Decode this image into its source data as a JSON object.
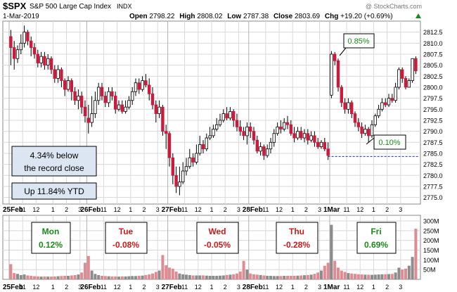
{
  "header": {
    "symbol": "$SPX",
    "name": "S&P 500 Large Cap Index",
    "exchange": "INDX",
    "date": "1-Mar-2019",
    "open_label": "Open",
    "open": "2798.22",
    "high_label": "High",
    "high": "2808.02",
    "low_label": "Low",
    "low": "2787.38",
    "close_label": "Close",
    "close": "2803.69",
    "chg_label": "Chg",
    "chg": "+19.20 (+0.69%)",
    "watermark": "@ StockCharts.com"
  },
  "colors": {
    "up": "#ffffff",
    "down": "#cc1a3c",
    "wick": "#000000",
    "vol_down": "#e08a92",
    "vol_up": "#8c8c8c",
    "grid": "#d8d8d8",
    "green_text": "#1a8a1a",
    "red_text": "#cc1a1a",
    "box_blue": "#dce6f2",
    "box_green": "#e6f2e6",
    "dashed": "#2030c0"
  },
  "annotations": {
    "below_record_line1": "4.34% below",
    "below_record_line2": "the record close",
    "ytd": "Up 11.84% YTD",
    "high_pct": "0.85%",
    "low_pct": "0.10%"
  },
  "days": [
    {
      "name": "Mon",
      "pct": "0.12%",
      "tone": "green"
    },
    {
      "name": "Tue",
      "pct": "-0.08%",
      "tone": "red"
    },
    {
      "name": "Wed",
      "pct": "-0.05%",
      "tone": "red"
    },
    {
      "name": "Thu",
      "pct": "-0.28%",
      "tone": "red"
    },
    {
      "name": "Fri",
      "pct": "0.69%",
      "tone": "green"
    }
  ],
  "chart_data": {
    "type": "candlestick",
    "title": "$SPX S&P 500 Large Cap Index INDX",
    "price_ylim": [
      2773.5,
      2815
    ],
    "price_ticks": [
      "2812.5",
      "2810.0",
      "2807.5",
      "2805.0",
      "2802.5",
      "2800.0",
      "2797.5",
      "2795.0",
      "2792.5",
      "2790.0",
      "2787.5",
      "2785.0",
      "2782.5",
      "2780.0",
      "2777.5",
      "2775.0"
    ],
    "volume_ticks": [
      "300M",
      "250M",
      "200M",
      "150M",
      "100M",
      "50M"
    ],
    "volume_ylim": [
      0,
      300
    ],
    "reference_line": 2784.3,
    "x_ticks": [
      {
        "bar": 0,
        "label": "25Feb",
        "major": true
      },
      {
        "bar": 4,
        "label": "11"
      },
      {
        "bar": 8,
        "label": "12"
      },
      {
        "bar": 13,
        "label": "1"
      },
      {
        "bar": 17,
        "label": "2"
      },
      {
        "bar": 21,
        "label": "3"
      },
      {
        "bar": 23,
        "label": "26Feb",
        "major": true
      },
      {
        "bar": 28,
        "label": "11"
      },
      {
        "bar": 32,
        "label": "12"
      },
      {
        "bar": 36,
        "label": "1"
      },
      {
        "bar": 40,
        "label": "2"
      },
      {
        "bar": 44,
        "label": "3"
      },
      {
        "bar": 47,
        "label": "27Feb",
        "major": true
      },
      {
        "bar": 52,
        "label": "11"
      },
      {
        "bar": 56,
        "label": "12"
      },
      {
        "bar": 60,
        "label": "1"
      },
      {
        "bar": 64,
        "label": "2"
      },
      {
        "bar": 68,
        "label": "3"
      },
      {
        "bar": 71,
        "label": "28Feb",
        "major": true
      },
      {
        "bar": 76,
        "label": "11"
      },
      {
        "bar": 80,
        "label": "12"
      },
      {
        "bar": 84,
        "label": "1"
      },
      {
        "bar": 88,
        "label": "2"
      },
      {
        "bar": 92,
        "label": "3"
      },
      {
        "bar": 95,
        "label": "1Mar",
        "major": true
      },
      {
        "bar": 100,
        "label": "11"
      },
      {
        "bar": 104,
        "label": "12"
      },
      {
        "bar": 108,
        "label": "1"
      },
      {
        "bar": 112,
        "label": "2"
      },
      {
        "bar": 116,
        "label": "3"
      }
    ],
    "candles": [
      [
        2811.5,
        2809,
        2813,
        2805,
        78
      ],
      [
        2809,
        2806.5,
        2810.5,
        2804,
        32
      ],
      [
        2806.5,
        2808.5,
        2809.5,
        2805.5,
        28
      ],
      [
        2808.5,
        2810,
        2812,
        2807.5,
        22
      ],
      [
        2810,
        2812.5,
        2814,
        2809,
        25
      ],
      [
        2812.5,
        2810.5,
        2813,
        2809.5,
        20
      ],
      [
        2810.5,
        2809,
        2811.5,
        2807,
        18
      ],
      [
        2809,
        2807.5,
        2810,
        2806.5,
        16
      ],
      [
        2807.5,
        2805.5,
        2808.5,
        2804.5,
        15
      ],
      [
        2805.5,
        2807,
        2808,
        2804.5,
        14
      ],
      [
        2807,
        2805,
        2808,
        2804,
        15
      ],
      [
        2805,
        2806.5,
        2807.5,
        2804,
        14
      ],
      [
        2806.5,
        2804,
        2807,
        2803,
        14
      ],
      [
        2804,
        2802,
        2805,
        2801,
        15
      ],
      [
        2802,
        2804,
        2805,
        2801,
        16
      ],
      [
        2804,
        2801.5,
        2804.5,
        2800,
        17
      ],
      [
        2801.5,
        2799.5,
        2802,
        2798,
        18
      ],
      [
        2799.5,
        2801.5,
        2802.5,
        2799,
        18
      ],
      [
        2801.5,
        2799,
        2802,
        2797,
        20
      ],
      [
        2799,
        2797,
        2800,
        2796,
        22
      ],
      [
        2797,
        2798,
        2799.5,
        2795,
        25
      ],
      [
        2798,
        2795.5,
        2799,
        2794,
        35
      ],
      [
        2795.5,
        2793.5,
        2797,
        2792,
        85
      ],
      [
        2793,
        2792,
        2796,
        2789.5,
        120
      ],
      [
        2792,
        2794,
        2798,
        2791,
        45
      ],
      [
        2794,
        2797,
        2799,
        2793,
        28
      ],
      [
        2797,
        2800,
        2801,
        2796,
        22
      ],
      [
        2800,
        2798,
        2801,
        2797,
        18
      ],
      [
        2798,
        2796.5,
        2799,
        2795.5,
        17
      ],
      [
        2796.5,
        2799,
        2800,
        2795.5,
        16
      ],
      [
        2799,
        2798,
        2800,
        2797,
        15
      ],
      [
        2798,
        2795,
        2799,
        2794,
        15
      ],
      [
        2795,
        2796,
        2797,
        2794.5,
        14
      ],
      [
        2796,
        2794.5,
        2797,
        2794,
        15
      ],
      [
        2794.5,
        2795.5,
        2797,
        2794,
        15
      ],
      [
        2795.5,
        2797,
        2798,
        2795,
        16
      ],
      [
        2797,
        2799,
        2800,
        2796,
        17
      ],
      [
        2799,
        2801,
        2802,
        2798,
        17
      ],
      [
        2801,
        2799.5,
        2802,
        2798.5,
        18
      ],
      [
        2799.5,
        2801.5,
        2802.5,
        2799,
        19
      ],
      [
        2801.5,
        2800.5,
        2803,
        2800,
        22
      ],
      [
        2800.5,
        2798.5,
        2802,
        2797,
        25
      ],
      [
        2798.5,
        2796,
        2800,
        2795,
        30
      ],
      [
        2796,
        2794,
        2797,
        2792,
        38
      ],
      [
        2794,
        2795.5,
        2797,
        2793,
        45
      ],
      [
        2795.5,
        2790,
        2796,
        2789,
        125
      ],
      [
        2790,
        2789.5,
        2791.5,
        2786,
        72
      ],
      [
        2789.5,
        2784,
        2790,
        2782,
        60
      ],
      [
        2784,
        2780,
        2785,
        2778,
        55
      ],
      [
        2780,
        2777.5,
        2782,
        2776,
        40
      ],
      [
        2777.5,
        2778.5,
        2782,
        2775.5,
        30
      ],
      [
        2778.5,
        2781,
        2783,
        2778,
        26
      ],
      [
        2781,
        2782,
        2784,
        2780,
        24
      ],
      [
        2782,
        2784,
        2786,
        2781.5,
        22
      ],
      [
        2784,
        2783,
        2785,
        2782,
        20
      ],
      [
        2783,
        2785,
        2787,
        2782.5,
        20
      ],
      [
        2785,
        2787,
        2789,
        2784.5,
        20
      ],
      [
        2787,
        2786,
        2788,
        2785,
        20
      ],
      [
        2786,
        2788.5,
        2789.5,
        2785.5,
        19
      ],
      [
        2788.5,
        2789,
        2791,
        2788,
        18
      ],
      [
        2789,
        2790.5,
        2791.5,
        2788.5,
        18
      ],
      [
        2790.5,
        2791.5,
        2793,
        2790,
        18
      ],
      [
        2791.5,
        2792.5,
        2794,
        2791,
        19
      ],
      [
        2792.5,
        2794,
        2795,
        2792,
        20
      ],
      [
        2794,
        2793,
        2795.5,
        2792.5,
        22
      ],
      [
        2793,
        2794.5,
        2795.5,
        2792.5,
        24
      ],
      [
        2794.5,
        2792.5,
        2795,
        2791,
        26
      ],
      [
        2792.5,
        2791,
        2794,
        2790,
        30
      ],
      [
        2791,
        2790,
        2792.5,
        2789,
        40
      ],
      [
        2790,
        2789,
        2791,
        2788,
        95
      ],
      [
        2789,
        2791,
        2792,
        2787,
        50
      ],
      [
        2791,
        2790,
        2792,
        2788.5,
        30
      ],
      [
        2790,
        2788,
        2791,
        2787,
        26
      ],
      [
        2788,
        2785.5,
        2789,
        2785,
        24
      ],
      [
        2785.5,
        2786.5,
        2787.5,
        2784.5,
        22
      ],
      [
        2786.5,
        2784.5,
        2787,
        2783.5,
        20
      ],
      [
        2784.5,
        2786,
        2787,
        2784,
        18
      ],
      [
        2786,
        2787.5,
        2788.5,
        2785,
        18
      ],
      [
        2787.5,
        2789.5,
        2790.5,
        2786.5,
        17
      ],
      [
        2789.5,
        2791,
        2792,
        2789,
        17
      ],
      [
        2791,
        2790.5,
        2792.5,
        2789.5,
        17
      ],
      [
        2790.5,
        2792,
        2793,
        2790,
        18
      ],
      [
        2792,
        2791.5,
        2793.5,
        2790.5,
        18
      ],
      [
        2791.5,
        2789.5,
        2792.5,
        2789,
        18
      ],
      [
        2789.5,
        2788.5,
        2791,
        2787.5,
        18
      ],
      [
        2788.5,
        2790,
        2791,
        2788,
        19
      ],
      [
        2790,
        2788.5,
        2791,
        2788,
        20
      ],
      [
        2788.5,
        2789.5,
        2790.5,
        2787.5,
        21
      ],
      [
        2789.5,
        2788,
        2790.5,
        2787,
        22
      ],
      [
        2788,
        2789,
        2790,
        2787.5,
        24
      ],
      [
        2789,
        2787.5,
        2790,
        2786.5,
        28
      ],
      [
        2787.5,
        2786.5,
        2788.5,
        2786,
        35
      ],
      [
        2786.5,
        2787.5,
        2788,
        2786,
        45
      ],
      [
        2787.5,
        2786,
        2788.5,
        2785.5,
        70
      ],
      [
        2786,
        2784.5,
        2787.5,
        2783.5,
        85
      ],
      [
        2798.2,
        2807.5,
        2808.2,
        2797.5,
        280
      ],
      [
        2807.5,
        2806,
        2808,
        2805,
        95
      ],
      [
        2806,
        2800,
        2806.5,
        2799,
        60
      ],
      [
        2800,
        2796.5,
        2800.5,
        2795.5,
        45
      ],
      [
        2796.5,
        2795,
        2797.5,
        2794,
        38
      ],
      [
        2795,
        2796.5,
        2797.5,
        2794,
        32
      ],
      [
        2796.5,
        2794,
        2797,
        2793,
        30
      ],
      [
        2794,
        2792,
        2794.5,
        2791,
        28
      ],
      [
        2792,
        2791,
        2793,
        2790,
        26
      ],
      [
        2791,
        2789.5,
        2792,
        2788.5,
        25
      ],
      [
        2789.5,
        2790.5,
        2791.5,
        2789,
        24
      ],
      [
        2790.5,
        2789,
        2791,
        2787.5,
        24
      ],
      [
        2789,
        2791.5,
        2792.5,
        2788.5,
        23
      ],
      [
        2791.5,
        2793.5,
        2794,
        2791,
        24
      ],
      [
        2793.5,
        2795,
        2796,
        2793,
        25
      ],
      [
        2795,
        2796.5,
        2797.5,
        2794.5,
        26
      ],
      [
        2796.5,
        2796,
        2797.5,
        2795.5,
        26
      ],
      [
        2796,
        2797.5,
        2798.5,
        2795.5,
        27
      ],
      [
        2797.5,
        2797,
        2798.5,
        2796.5,
        28
      ],
      [
        2797,
        2800,
        2801,
        2796.5,
        35
      ],
      [
        2800,
        2804,
        2804.5,
        2799.5,
        60
      ],
      [
        2804,
        2802,
        2804.5,
        2801,
        50
      ],
      [
        2802,
        2800,
        2802.5,
        2799.5,
        55
      ],
      [
        2800,
        2801.5,
        2802,
        2800,
        70
      ],
      [
        2801.5,
        2806.5,
        2806.5,
        2801,
        115
      ],
      [
        2806.5,
        2803.7,
        2807,
        2803,
        260
      ]
    ]
  }
}
